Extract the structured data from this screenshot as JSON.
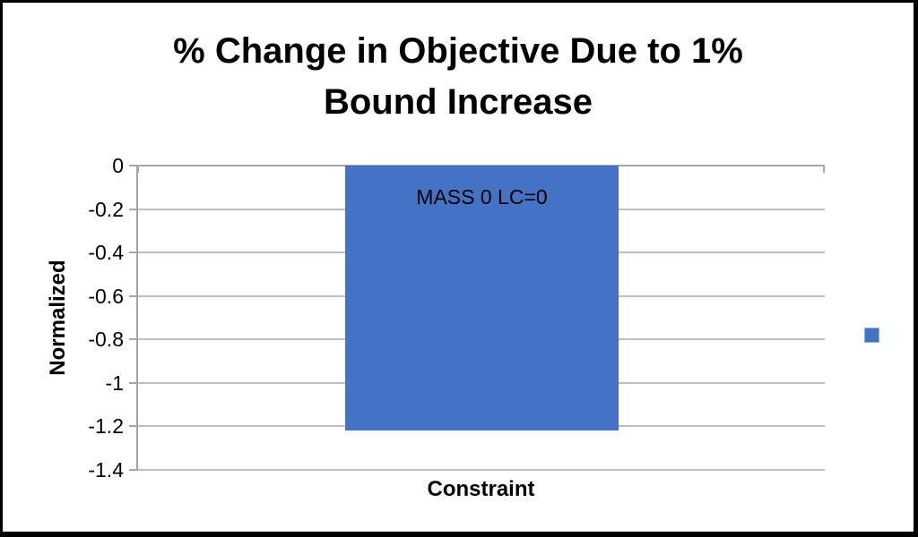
{
  "chart_data": {
    "type": "bar",
    "title": "% Change in Objective Due to 1% Bound Increase",
    "title_lines": [
      "% Change in Objective Due to 1%",
      "Bound Increase"
    ],
    "categories": [
      "MASS 0 LC=0"
    ],
    "values": [
      -1.22
    ],
    "xlabel": "Constraint",
    "ylabel": "Normalized",
    "ylim": [
      -1.4,
      0
    ],
    "yticks": [
      0,
      -0.2,
      -0.4,
      -0.6,
      -0.8,
      -1,
      -1.2,
      -1.4
    ],
    "ytick_labels": [
      "0",
      "-0.2",
      "-0.4",
      "-0.6",
      "-0.8",
      "-1",
      "-1.2",
      "-1.4"
    ],
    "grid": true,
    "legend": {
      "position": "right-middle",
      "marker": "square",
      "label": ""
    },
    "colors": {
      "bar": "#4472c4",
      "gridline": "#bfbfbf",
      "axis": "#a6a6a6",
      "text": "#000000"
    }
  }
}
